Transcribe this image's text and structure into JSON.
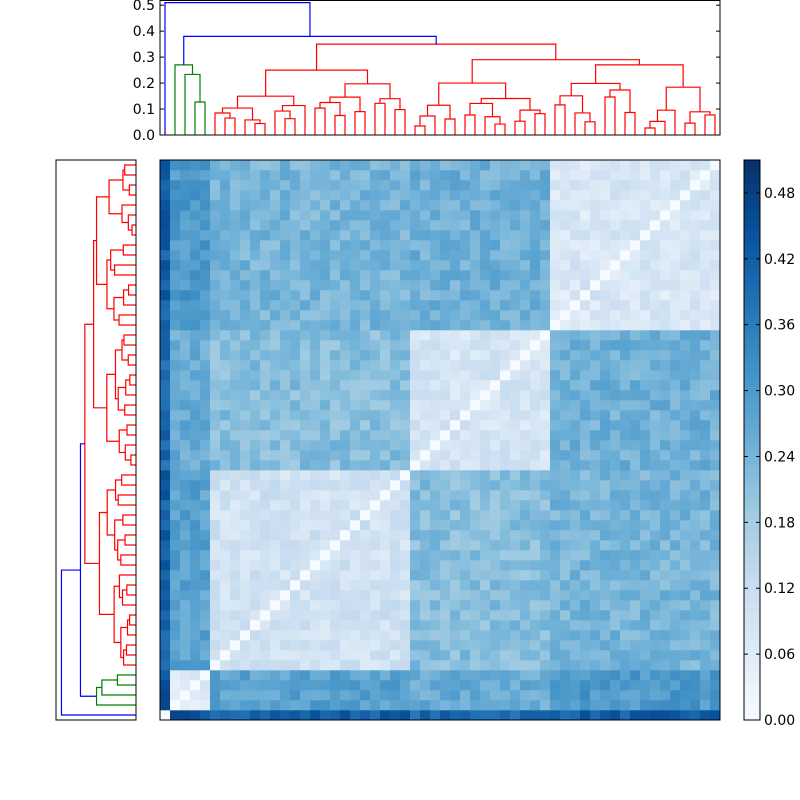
{
  "chart_data": [
    {
      "type": "dendrogram",
      "panel": "top",
      "ylim": [
        0,
        0.52
      ],
      "yticks": [
        "0.0",
        "0.1",
        "0.2",
        "0.3",
        "0.4",
        "0.5"
      ],
      "yvalues": [
        0,
        0.1,
        0.2,
        0.3,
        0.4,
        0.5
      ],
      "cluster_colors": {
        "green": "#008000",
        "red": "#ff0000",
        "blue": "#0000ff"
      },
      "leaf_count": 56,
      "root_height": 0.51
    },
    {
      "type": "dendrogram",
      "panel": "left",
      "leaf_count": 56,
      "root_height": 0.51
    },
    {
      "type": "heatmap",
      "rows": 56,
      "cols": 56,
      "colormap": "Blues",
      "vmin": 0.0,
      "vmax": 0.51,
      "colorbar_ticks": [
        "0.00",
        "0.06",
        "0.12",
        "0.18",
        "0.24",
        "0.30",
        "0.36",
        "0.42",
        "0.48"
      ],
      "colorbar_values": [
        0,
        0.06,
        0.12,
        0.18,
        0.24,
        0.3,
        0.36,
        0.42,
        0.48
      ],
      "cluster_sizes": [
        1,
        4,
        20,
        14,
        17
      ]
    }
  ]
}
